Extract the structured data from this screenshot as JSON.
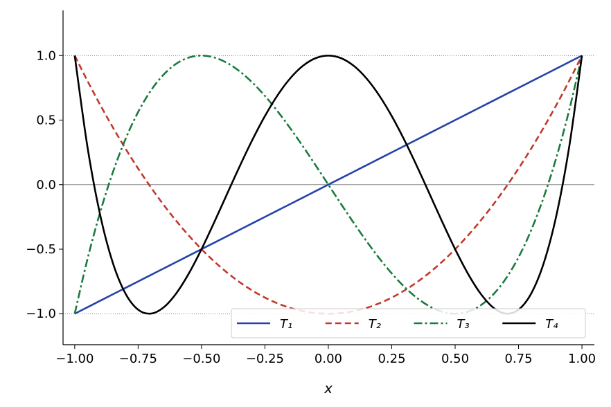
{
  "chart_data": {
    "type": "line",
    "x_label": "x",
    "x": [
      -1,
      -0.95,
      -0.9,
      -0.85,
      -0.8,
      -0.75,
      -0.7,
      -0.65,
      -0.6,
      -0.55,
      -0.5,
      -0.45,
      -0.4,
      -0.35,
      -0.3,
      -0.25,
      -0.2,
      -0.15,
      -0.1,
      -0.05,
      0,
      0.05,
      0.1,
      0.15,
      0.2,
      0.25,
      0.3,
      0.35,
      0.4,
      0.45,
      0.5,
      0.55,
      0.6,
      0.65,
      0.7,
      0.75,
      0.8,
      0.85,
      0.9,
      0.95,
      1
    ],
    "series": [
      {
        "name": "T₁",
        "color": "#2443a8",
        "dash": "solid",
        "values": [
          -1,
          -0.95,
          -0.9,
          -0.85,
          -0.8,
          -0.75,
          -0.7,
          -0.65,
          -0.6,
          -0.55,
          -0.5,
          -0.45,
          -0.4,
          -0.35,
          -0.3,
          -0.25,
          -0.2,
          -0.15,
          -0.1,
          -0.05,
          0,
          0.05,
          0.1,
          0.15,
          0.2,
          0.25,
          0.3,
          0.35,
          0.4,
          0.45,
          0.5,
          0.55,
          0.6,
          0.65,
          0.7,
          0.75,
          0.8,
          0.85,
          0.9,
          0.95,
          1
        ]
      },
      {
        "name": "T₂",
        "color": "#c0392b",
        "dash": "dashed",
        "values": [
          1,
          0.805,
          0.62,
          0.445,
          0.28,
          0.125,
          -0.02,
          -0.155,
          -0.28,
          -0.395,
          -0.5,
          -0.595,
          -0.68,
          -0.755,
          -0.82,
          -0.875,
          -0.92,
          -0.955,
          -0.98,
          -0.995,
          -1,
          -0.995,
          -0.98,
          -0.955,
          -0.92,
          -0.875,
          -0.82,
          -0.755,
          -0.68,
          -0.595,
          -0.5,
          -0.395,
          -0.28,
          -0.155,
          -0.02,
          0.125,
          0.28,
          0.445,
          0.62,
          0.805,
          1
        ]
      },
      {
        "name": "T₃",
        "color": "#1b7a3e",
        "dash": "dashdot",
        "values": [
          -1,
          -0.5795,
          -0.216,
          0.0935,
          0.352,
          0.5625,
          0.728,
          0.8515,
          0.936,
          0.9845,
          1,
          0.9855,
          0.944,
          0.8785,
          0.792,
          0.6875,
          0.568,
          0.4365,
          0.296,
          0.1495,
          0,
          -0.1495,
          -0.296,
          -0.4365,
          -0.568,
          -0.6875,
          -0.792,
          -0.8785,
          -0.944,
          -0.9855,
          -1,
          -0.9845,
          -0.936,
          -0.8515,
          -0.728,
          -0.5625,
          -0.352,
          -0.0935,
          0.216,
          0.5795,
          1
        ]
      },
      {
        "name": "T₄",
        "color": "#000000",
        "dash": "solid",
        "values": [
          1,
          0.29605,
          -0.2312,
          -0.60395,
          -0.8432,
          -0.96875,
          -0.9992,
          -0.95195,
          -0.8432,
          -0.68795,
          -0.5,
          -0.29195,
          -0.0752,
          0.14005,
          0.3448,
          0.53125,
          0.6928,
          0.82405,
          0.9208,
          0.98005,
          1,
          0.98005,
          0.9208,
          0.82405,
          0.6928,
          0.53125,
          0.3448,
          0.14005,
          -0.0752,
          -0.29195,
          -0.5,
          -0.68795,
          -0.8432,
          -0.95195,
          -0.9992,
          -0.96875,
          -0.8432,
          -0.60395,
          -0.2312,
          0.29605,
          1
        ]
      }
    ],
    "xlim": [
      -1.046,
      1.049
    ],
    "ylim": [
      -1.24,
      1.35
    ],
    "xticks": [
      {
        "value": -1,
        "label": "−1.00"
      },
      {
        "value": -0.75,
        "label": "−0.75"
      },
      {
        "value": -0.5,
        "label": "−0.50"
      },
      {
        "value": -0.25,
        "label": "−0.25"
      },
      {
        "value": 0,
        "label": "0.00"
      },
      {
        "value": 0.25,
        "label": "0.25"
      },
      {
        "value": 0.5,
        "label": "0.50"
      },
      {
        "value": 0.75,
        "label": "0.75"
      },
      {
        "value": 1,
        "label": "1.00"
      }
    ],
    "yticks": [
      {
        "value": -1,
        "label": "−1.0"
      },
      {
        "value": -0.5,
        "label": "−0.5"
      },
      {
        "value": 0,
        "label": "0.0"
      },
      {
        "value": 0.5,
        "label": "0.5"
      },
      {
        "value": 1,
        "label": "1.0"
      }
    ],
    "reference_lines": [
      {
        "y": -1,
        "style": "dotted"
      },
      {
        "y": 0,
        "style": "solid"
      },
      {
        "y": 1,
        "style": "dotted"
      }
    ],
    "legend": "lower right"
  }
}
